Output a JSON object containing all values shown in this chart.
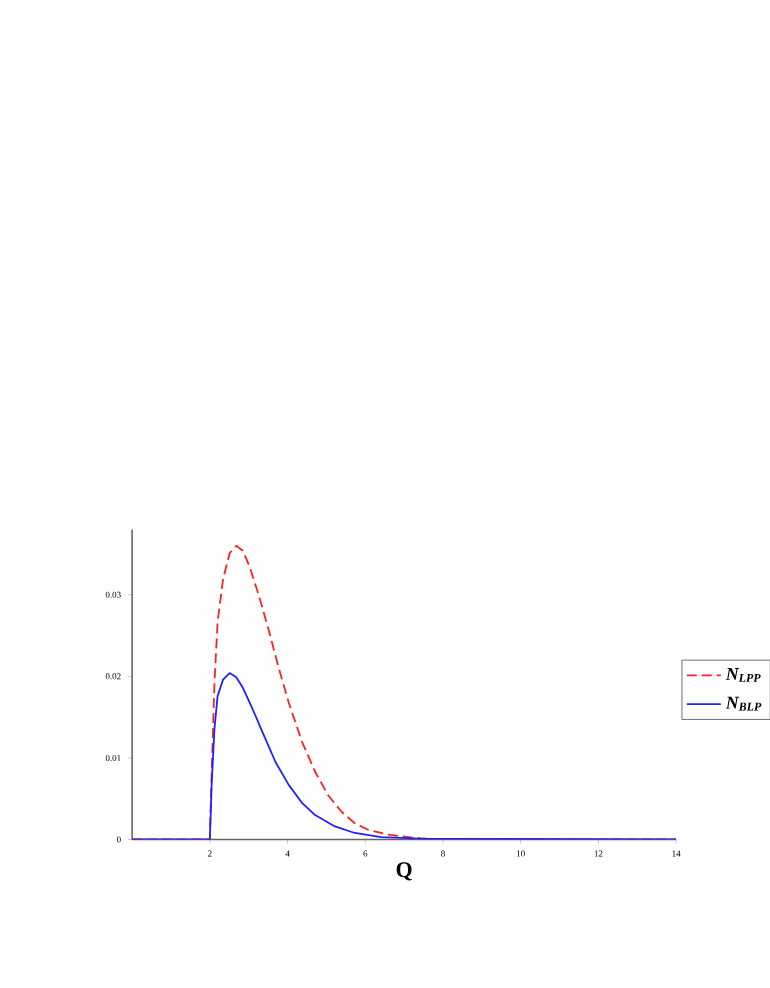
{
  "chart_data": {
    "type": "line",
    "xlabel": "Q",
    "xlim": [
      0,
      14
    ],
    "xticks": [
      2,
      4,
      6,
      8,
      10,
      12,
      14
    ],
    "ylim": [
      0,
      0.038
    ],
    "yticks": [
      0,
      0.01,
      0.02,
      0.03
    ],
    "grid": false,
    "legend": "right",
    "marker": "none",
    "series": [
      {
        "name": "N$_{LPP}$",
        "color": "#ff2020",
        "line_style": "dashed",
        "x": [
          0,
          2.0,
          2.05,
          2.12,
          2.2,
          2.34,
          2.51,
          2.68,
          2.85,
          3.02,
          3.27,
          3.53,
          3.78,
          4.03,
          4.37,
          4.71,
          5.05,
          5.39,
          5.73,
          6.07,
          6.58,
          7.25,
          8.1,
          14
        ],
        "values": [
          0,
          0,
          0.0087,
          0.0193,
          0.0267,
          0.0319,
          0.0351,
          0.036,
          0.0354,
          0.0335,
          0.0298,
          0.0254,
          0.0209,
          0.0168,
          0.012,
          0.0083,
          0.0054,
          0.0034,
          0.002,
          0.0012,
          0.0006,
          0.0002,
          0,
          0
        ]
      },
      {
        "name": "N$_{BLP}$",
        "color": "#2020ff",
        "line_style": "solid",
        "x": [
          0,
          2.0,
          2.05,
          2.12,
          2.2,
          2.34,
          2.51,
          2.68,
          2.85,
          3.1,
          3.36,
          3.69,
          4.03,
          4.37,
          4.71,
          5.22,
          5.73,
          6.41,
          7.42,
          14
        ],
        "values": [
          0,
          0,
          0.0071,
          0.0136,
          0.0176,
          0.0196,
          0.0204,
          0.0199,
          0.0186,
          0.016,
          0.0131,
          0.0095,
          0.0067,
          0.0045,
          0.003,
          0.0016,
          0.0008,
          0.0003,
          0.0001,
          0
        ]
      }
    ]
  }
}
